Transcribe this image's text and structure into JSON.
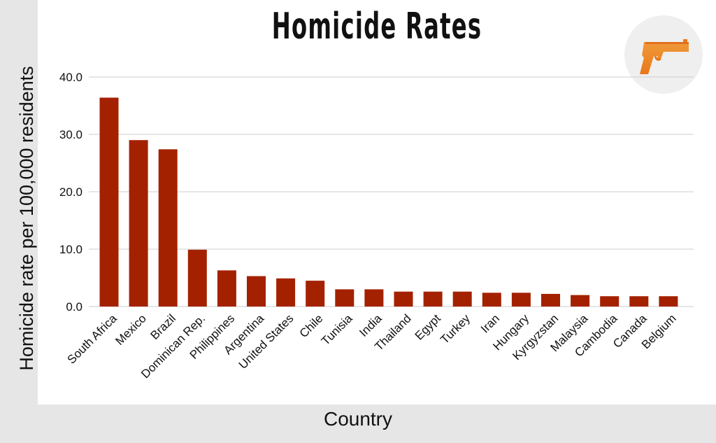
{
  "chart_data": {
    "type": "bar",
    "title": "Homicide Rates",
    "xlabel": "Country",
    "ylabel": "Homicide rate per 100,000 residents",
    "categories": [
      "South Africa",
      "Mexico",
      "Brazil",
      "Dominican Rep.",
      "Philippines",
      "Argentina",
      "United States",
      "Chile",
      "Tunisia",
      "India",
      "Thailand",
      "Egypt",
      "Turkey",
      "Iran",
      "Hungary",
      "Kyrgyzstan",
      "Malaysia",
      "Cambodia",
      "Canada",
      "Belgium"
    ],
    "values": [
      36.4,
      29.0,
      27.4,
      9.9,
      6.3,
      5.3,
      4.9,
      4.5,
      3.0,
      3.0,
      2.6,
      2.6,
      2.6,
      2.4,
      2.4,
      2.2,
      2.0,
      1.8,
      1.8,
      1.8
    ],
    "yticks": [
      "0.0",
      "10.0",
      "20.0",
      "30.0",
      "40.0"
    ],
    "ylim": [
      0,
      40
    ],
    "grid": true,
    "bar_color": "#a42100",
    "grid_color": "#cccccc",
    "icon": "pistol-icon"
  }
}
